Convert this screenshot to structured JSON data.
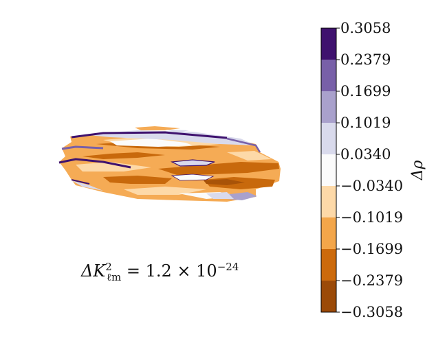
{
  "chart_data": {
    "type": "heatmap",
    "colorbar": {
      "label": "Δρ",
      "levels": [
        -0.3058,
        -0.2379,
        -0.1699,
        -0.1019,
        -0.034,
        0.034,
        0.1019,
        0.1699,
        0.2379,
        0.3058
      ],
      "tick_labels": [
        "0.3058",
        "0.2379",
        "0.1699",
        "0.1019",
        "0.0340",
        "−0.0340",
        "−0.1019",
        "−0.1699",
        "−0.2379",
        "−0.3058"
      ],
      "colors": [
        "#7f3b08",
        "#b35806",
        "#e08214",
        "#fdb863",
        "#fee0b6",
        "#f7f7f7",
        "#d8daeb",
        "#b2abd2",
        "#8073ac",
        "#542788",
        "#2d004b"
      ],
      "bin_colors_bottom_to_top": [
        "#9b4a08",
        "#cc6a0c",
        "#f3a64a",
        "#fdd9a8",
        "#fbfbfb",
        "#d9daec",
        "#a9a1cc",
        "#7860a8",
        "#3f126e"
      ]
    },
    "annotation": {
      "prefix": "ΔK",
      "sup": "2",
      "sub": "ℓm",
      "equals": " = 1.2 × 10",
      "exp": "−24"
    }
  }
}
